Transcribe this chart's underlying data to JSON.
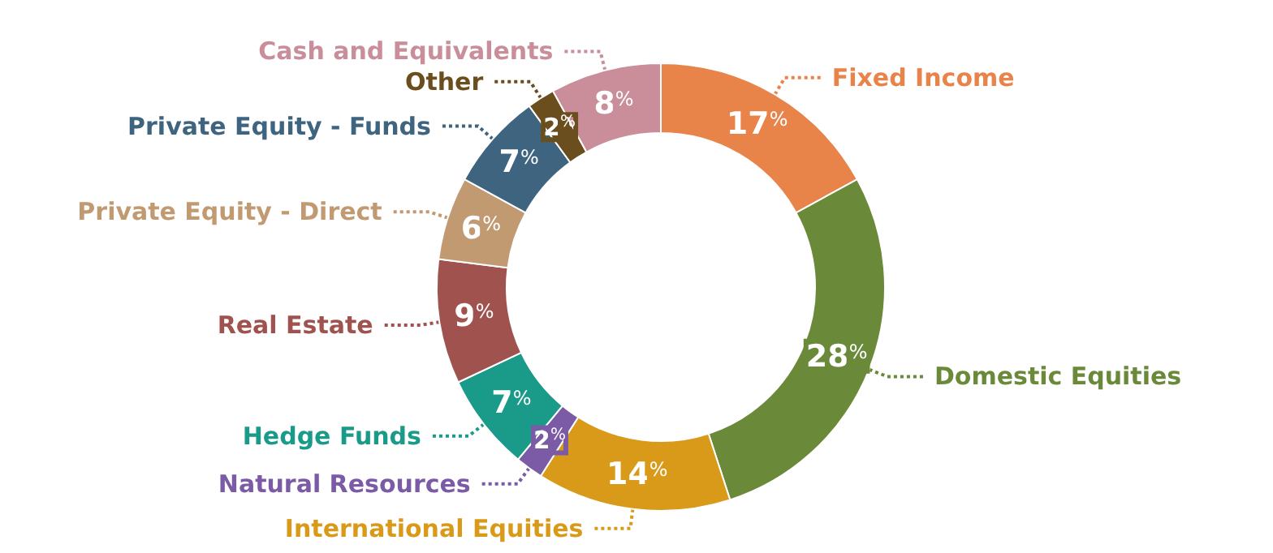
{
  "chart_data": {
    "type": "donut",
    "categories": [
      "Fixed Income",
      "Domestic Equities",
      "International Equities",
      "Natural Resources",
      "Hedge Funds",
      "Real Estate",
      "Private Equity - Direct",
      "Private Equity - Funds",
      "Other",
      "Cash and Equivalents"
    ],
    "values": [
      17,
      28,
      14,
      2,
      7,
      9,
      6,
      7,
      2,
      8
    ],
    "colors": [
      "#e8834a",
      "#6a8a3a",
      "#d99a1a",
      "#7b5aa6",
      "#1a9a88",
      "#a0524e",
      "#c19a72",
      "#3f6480",
      "#6b4e1e",
      "#c98e9a"
    ],
    "value_labels": [
      "17%",
      "28%",
      "14%",
      "2%",
      "7%",
      "9%",
      "6%",
      "7%",
      "2%",
      "8%"
    ],
    "legend": false
  }
}
